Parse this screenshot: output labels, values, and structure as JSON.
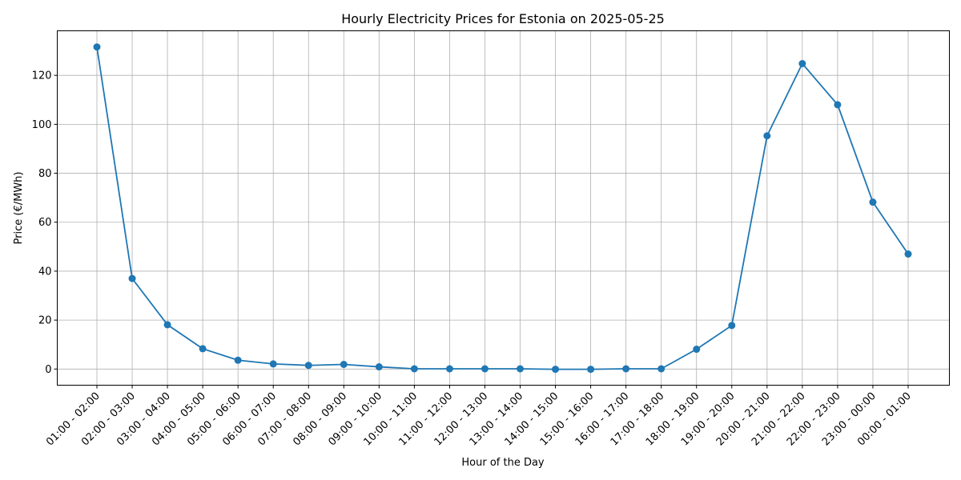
{
  "chart_data": {
    "type": "line",
    "title": "Hourly Electricity Prices for Estonia on 2025-05-25",
    "xlabel": "Hour of the Day",
    "ylabel": "Price (€/MWh)",
    "categories": [
      "01:00 - 02:00",
      "02:00 - 03:00",
      "03:00 - 04:00",
      "04:00 - 05:00",
      "05:00 - 06:00",
      "06:00 - 07:00",
      "07:00 - 08:00",
      "08:00 - 09:00",
      "09:00 - 10:00",
      "10:00 - 11:00",
      "11:00 - 12:00",
      "12:00 - 13:00",
      "13:00 - 14:00",
      "14:00 - 15:00",
      "15:00 - 16:00",
      "16:00 - 17:00",
      "17:00 - 18:00",
      "18:00 - 19:00",
      "19:00 - 20:00",
      "20:00 - 21:00",
      "21:00 - 22:00",
      "22:00 - 23:00",
      "23:00 - 00:00",
      "00:00 - 01:00"
    ],
    "series": [
      {
        "values": [
          131.6,
          37.0,
          18.1,
          8.3,
          3.6,
          2.1,
          1.5,
          1.9,
          0.9,
          0.1,
          0.1,
          0.1,
          0.1,
          -0.1,
          -0.1,
          0.1,
          0.1,
          8.1,
          17.8,
          95.3,
          124.8,
          108.0,
          68.2,
          47.0
        ],
        "color": "#1f77b4",
        "marker": "circle"
      }
    ],
    "yticks": [
      0,
      20,
      40,
      60,
      80,
      100,
      120
    ],
    "ylim": [
      -6.6,
      138.2
    ],
    "grid": true,
    "xtick_rotation": 45
  }
}
